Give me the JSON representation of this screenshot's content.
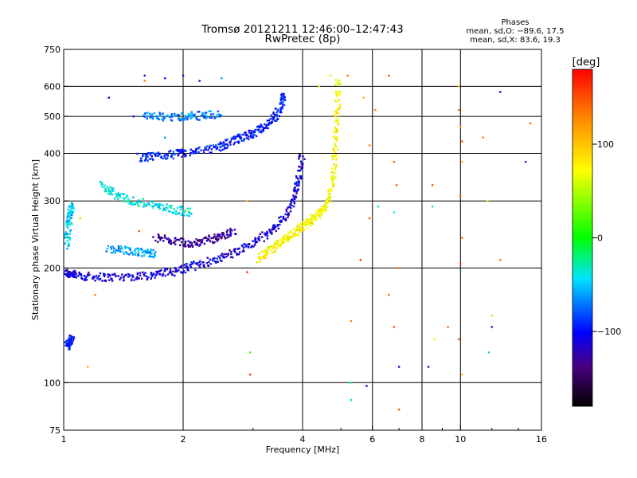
{
  "header": {
    "title_line1": "Tromsø 20121211 12:46:00–12:47:43",
    "title_line2": "RwPretec (8p)"
  },
  "stats": {
    "heading": "Phases",
    "line_o": "mean, sd,O: −89.6, 17.5",
    "line_x": "mean, sd,X: 83.6, 19.3"
  },
  "colorbar": {
    "unit": "[deg]",
    "ticks": [
      "100",
      "0",
      "−100"
    ],
    "tick_values": [
      100,
      0,
      -100
    ],
    "range": [
      -180,
      180
    ]
  },
  "chart_data": {
    "type": "scatter",
    "xlabel": "Frequency [MHz]",
    "ylabel": "Stationary phase Virtual Height [km]",
    "xscale": "log",
    "yscale": "log",
    "xlim": [
      1,
      16
    ],
    "ylim": [
      75,
      750
    ],
    "xticks": [
      1,
      2,
      4,
      6,
      8,
      10,
      16
    ],
    "xtick_labels": [
      "1",
      "2",
      "4",
      "6",
      "8",
      "10",
      "16"
    ],
    "yticks": [
      75,
      100,
      200,
      300,
      400,
      500,
      600,
      750
    ],
    "ytick_labels": [
      "75",
      "100",
      "200",
      "300",
      "400",
      "500",
      "600",
      "750"
    ],
    "xgrid": [
      2,
      4,
      6,
      8,
      10
    ],
    "ygrid": [
      100,
      200,
      300,
      400,
      500,
      600
    ],
    "color_meaning": "phase in degrees (colorbar)",
    "traces": [
      {
        "points": [
          [
            1.0,
            195
          ],
          [
            1.05,
            192
          ],
          [
            1.15,
            190
          ],
          [
            1.3,
            189
          ],
          [
            1.5,
            190
          ],
          [
            1.7,
            192
          ],
          [
            1.9,
            196
          ],
          [
            2.1,
            202
          ],
          [
            2.4,
            210
          ],
          [
            2.7,
            220
          ],
          [
            3.0,
            232
          ],
          [
            3.3,
            248
          ],
          [
            3.6,
            270
          ],
          [
            3.8,
            300
          ],
          [
            3.9,
            340
          ],
          [
            4.0,
            400
          ]
        ],
        "phase": -110
      },
      {
        "points": [
          [
            3.1,
            212
          ],
          [
            3.3,
            222
          ],
          [
            3.5,
            232
          ],
          [
            3.7,
            242
          ],
          [
            3.9,
            252
          ],
          [
            4.1,
            262
          ],
          [
            4.3,
            272
          ],
          [
            4.5,
            285
          ],
          [
            4.7,
            310
          ],
          [
            4.8,
            360
          ],
          [
            4.85,
            430
          ],
          [
            4.9,
            520
          ],
          [
            4.92,
            640
          ]
        ],
        "phase": 75
      },
      {
        "points": [
          [
            1.55,
            390
          ],
          [
            1.7,
            392
          ],
          [
            1.9,
            398
          ],
          [
            2.1,
            402
          ],
          [
            2.4,
            412
          ],
          [
            2.6,
            425
          ],
          [
            2.8,
            440
          ],
          [
            3.0,
            452
          ],
          [
            3.2,
            470
          ],
          [
            3.4,
            495
          ],
          [
            3.55,
            540
          ],
          [
            3.6,
            580
          ]
        ],
        "phase": -95
      },
      {
        "points": [
          [
            1.6,
            500
          ],
          [
            1.8,
            498
          ],
          [
            2.0,
            500
          ],
          [
            2.2,
            502
          ],
          [
            2.5,
            505
          ]
        ],
        "phase": -70
      },
      {
        "points": [
          [
            1.25,
            330
          ],
          [
            1.35,
            310
          ],
          [
            1.5,
            300
          ],
          [
            1.7,
            292
          ],
          [
            1.9,
            285
          ],
          [
            2.1,
            280
          ]
        ],
        "phase": -40
      },
      {
        "points": [
          [
            1.7,
            240
          ],
          [
            1.9,
            236
          ],
          [
            2.1,
            232
          ],
          [
            2.3,
            236
          ],
          [
            2.5,
            242
          ],
          [
            2.7,
            250
          ]
        ],
        "phase": -130
      },
      {
        "points": [
          [
            1.3,
            225
          ],
          [
            1.45,
            222
          ],
          [
            1.6,
            220
          ],
          [
            1.7,
            218
          ]
        ],
        "phase": -60
      },
      {
        "points": [
          [
            1.02,
            230
          ],
          [
            1.03,
            260
          ],
          [
            1.04,
            280
          ],
          [
            1.05,
            290
          ]
        ],
        "phase": -50
      },
      {
        "points": [
          [
            1.02,
            125
          ],
          [
            1.04,
            128
          ],
          [
            1.05,
            132
          ]
        ],
        "phase": -100
      }
    ],
    "scatter_points": [
      [
        1.6,
        640,
        -100
      ],
      [
        1.8,
        630,
        -90
      ],
      [
        2.0,
        640,
        -100
      ],
      [
        2.2,
        620,
        -110
      ],
      [
        2.5,
        630,
        -60
      ],
      [
        1.3,
        560,
        -110
      ],
      [
        1.5,
        500,
        -110
      ],
      [
        4.7,
        640,
        80
      ],
      [
        4.4,
        600,
        60
      ],
      [
        5.2,
        640,
        130
      ],
      [
        5.7,
        560,
        100
      ],
      [
        5.9,
        420,
        130
      ],
      [
        6.1,
        520,
        125
      ],
      [
        6.6,
        640,
        150
      ],
      [
        6.8,
        380,
        140
      ],
      [
        6.9,
        330,
        150
      ],
      [
        6.8,
        280,
        -40
      ],
      [
        7.0,
        200,
        130
      ],
      [
        6.6,
        170,
        140
      ],
      [
        6.8,
        140,
        150
      ],
      [
        7.0,
        85,
        150
      ],
      [
        7.0,
        110,
        -110
      ],
      [
        5.8,
        98,
        -110
      ],
      [
        5.3,
        90,
        -30
      ],
      [
        5.3,
        100,
        -20
      ],
      [
        5.3,
        145,
        130
      ],
      [
        5.6,
        210,
        160
      ],
      [
        5.9,
        270,
        150
      ],
      [
        6.2,
        290,
        -30
      ],
      [
        8.5,
        330,
        150
      ],
      [
        8.5,
        290,
        -20
      ],
      [
        8.6,
        130,
        60
      ],
      [
        8.3,
        110,
        -120
      ],
      [
        9.3,
        140,
        140
      ],
      [
        9.9,
        130,
        150
      ],
      [
        9.9,
        600,
        100
      ],
      [
        9.9,
        520,
        140
      ],
      [
        10.0,
        470,
        110
      ],
      [
        10.1,
        430,
        150
      ],
      [
        10.1,
        380,
        110
      ],
      [
        10.0,
        310,
        140
      ],
      [
        10.1,
        240,
        140
      ],
      [
        10.0,
        205,
        150
      ],
      [
        10.1,
        105,
        100
      ],
      [
        11.4,
        440,
        130
      ],
      [
        11.7,
        300,
        80
      ],
      [
        12.6,
        580,
        -110
      ],
      [
        12.6,
        210,
        140
      ],
      [
        12.0,
        150,
        50
      ],
      [
        12.0,
        140,
        -90
      ],
      [
        11.8,
        120,
        -20
      ],
      [
        14.6,
        380,
        -90
      ],
      [
        15.0,
        480,
        140
      ],
      [
        2.9,
        300,
        100
      ],
      [
        2.95,
        120,
        20
      ],
      [
        2.95,
        105,
        160
      ],
      [
        2.9,
        195,
        160
      ],
      [
        1.15,
        110,
        110
      ],
      [
        1.2,
        170,
        130
      ],
      [
        1.55,
        250,
        150
      ],
      [
        1.6,
        620,
        130
      ],
      [
        1.1,
        270,
        100
      ],
      [
        1.8,
        440,
        -60
      ]
    ]
  }
}
